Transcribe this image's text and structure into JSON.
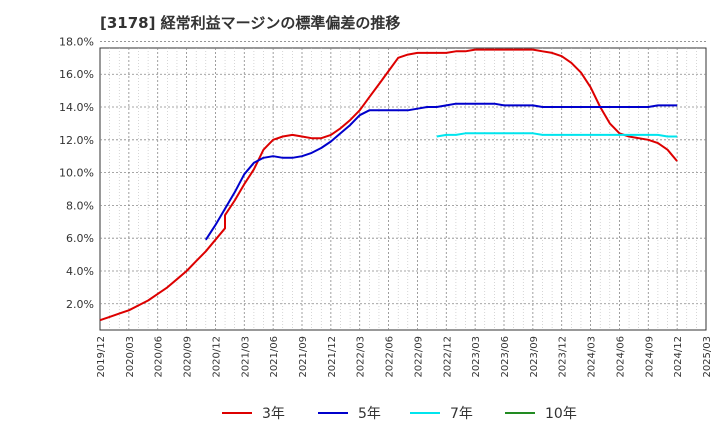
{
  "title": "[3178]  経常利益マージンの標準偏差の推移",
  "chart_data": {
    "type": "line",
    "title": "[3178]  経常利益マージンの標準偏差の推移",
    "xlabel": "",
    "ylabel": "",
    "ylim": [
      0.4,
      17.6
    ],
    "y_ticks": [
      "2.0%",
      "4.0%",
      "6.0%",
      "8.0%",
      "10.0%",
      "12.0%",
      "14.0%",
      "16.0%",
      "18.0%"
    ],
    "y_tick_values": [
      2,
      4,
      6,
      8,
      10,
      12,
      14,
      16,
      18
    ],
    "x_ticks": [
      "2019/12",
      "2020/03",
      "2020/06",
      "2020/09",
      "2020/12",
      "2021/03",
      "2021/06",
      "2021/09",
      "2021/12",
      "2022/03",
      "2022/06",
      "2022/09",
      "2022/12",
      "2023/03",
      "2023/06",
      "2023/09",
      "2023/12",
      "2024/03",
      "2024/06",
      "2024/09",
      "2024/12",
      "2025/03"
    ],
    "grid": true,
    "legend_position": "bottom",
    "series": [
      {
        "name": "3年",
        "color": "#dd0000",
        "points": [
          [
            "2019/12",
            1.0
          ],
          [
            "2020/01",
            1.2
          ],
          [
            "2020/02",
            1.4
          ],
          [
            "2020/03",
            1.6
          ],
          [
            "2020/04",
            1.9
          ],
          [
            "2020/05",
            2.2
          ],
          [
            "2020/06",
            2.6
          ],
          [
            "2020/07",
            3.0
          ],
          [
            "2020/08",
            3.5
          ],
          [
            "2020/09",
            4.0
          ],
          [
            "2020/10",
            4.6
          ],
          [
            "2020/11",
            5.2
          ],
          [
            "2020/12",
            5.9
          ],
          [
            "2020/13",
            6.6
          ],
          [
            "2021/01",
            7.4
          ],
          [
            "2021/02",
            8.3
          ],
          [
            "2021/03",
            9.3
          ],
          [
            "2021/04",
            10.2
          ],
          [
            "2021/05",
            11.4
          ],
          [
            "2021/06",
            12.0
          ],
          [
            "2021/07",
            12.2
          ],
          [
            "2021/08",
            12.3
          ],
          [
            "2021/09",
            12.2
          ],
          [
            "2021/10",
            12.1
          ],
          [
            "2021/11",
            12.1
          ],
          [
            "2021/12",
            12.3
          ],
          [
            "2022/01",
            12.7
          ],
          [
            "2022/02",
            13.2
          ],
          [
            "2022/03",
            13.8
          ],
          [
            "2022/04",
            14.6
          ],
          [
            "2022/05",
            15.4
          ],
          [
            "2022/06",
            16.2
          ],
          [
            "2022/07",
            17.0
          ],
          [
            "2022/08",
            17.2
          ],
          [
            "2022/09",
            17.3
          ],
          [
            "2022/10",
            17.3
          ],
          [
            "2022/11",
            17.3
          ],
          [
            "2022/12",
            17.3
          ],
          [
            "2023/01",
            17.4
          ],
          [
            "2023/02",
            17.4
          ],
          [
            "2023/03",
            17.5
          ],
          [
            "2023/04",
            17.5
          ],
          [
            "2023/05",
            17.5
          ],
          [
            "2023/06",
            17.5
          ],
          [
            "2023/07",
            17.5
          ],
          [
            "2023/08",
            17.5
          ],
          [
            "2023/09",
            17.5
          ],
          [
            "2023/10",
            17.4
          ],
          [
            "2023/11",
            17.3
          ],
          [
            "2023/12",
            17.1
          ],
          [
            "2024/01",
            16.7
          ],
          [
            "2024/02",
            16.1
          ],
          [
            "2024/03",
            15.2
          ],
          [
            "2024/04",
            14.0
          ],
          [
            "2024/05",
            13.0
          ],
          [
            "2024/06",
            12.4
          ],
          [
            "2024/07",
            12.2
          ],
          [
            "2024/08",
            12.1
          ],
          [
            "2024/09",
            12.0
          ],
          [
            "2024/10",
            11.8
          ],
          [
            "2024/11",
            11.4
          ],
          [
            "2024/12",
            10.7
          ]
        ]
      },
      {
        "name": "5年",
        "color": "#0000cc",
        "points": [
          [
            "2020/11",
            5.9
          ],
          [
            "2020/12",
            6.8
          ],
          [
            "2021/01",
            7.8
          ],
          [
            "2021/02",
            8.8
          ],
          [
            "2021/03",
            9.9
          ],
          [
            "2021/04",
            10.6
          ],
          [
            "2021/05",
            10.9
          ],
          [
            "2021/06",
            11.0
          ],
          [
            "2021/07",
            10.9
          ],
          [
            "2021/08",
            10.9
          ],
          [
            "2021/09",
            11.0
          ],
          [
            "2021/10",
            11.2
          ],
          [
            "2021/11",
            11.5
          ],
          [
            "2021/12",
            11.9
          ],
          [
            "2022/01",
            12.4
          ],
          [
            "2022/02",
            12.9
          ],
          [
            "2022/03",
            13.5
          ],
          [
            "2022/04",
            13.8
          ],
          [
            "2022/05",
            13.8
          ],
          [
            "2022/06",
            13.8
          ],
          [
            "2022/07",
            13.8
          ],
          [
            "2022/08",
            13.8
          ],
          [
            "2022/09",
            13.9
          ],
          [
            "2022/10",
            14.0
          ],
          [
            "2022/11",
            14.0
          ],
          [
            "2022/12",
            14.1
          ],
          [
            "2023/01",
            14.2
          ],
          [
            "2023/02",
            14.2
          ],
          [
            "2023/03",
            14.2
          ],
          [
            "2023/04",
            14.2
          ],
          [
            "2023/05",
            14.2
          ],
          [
            "2023/06",
            14.1
          ],
          [
            "2023/07",
            14.1
          ],
          [
            "2023/08",
            14.1
          ],
          [
            "2023/09",
            14.1
          ],
          [
            "2023/10",
            14.0
          ],
          [
            "2023/11",
            14.0
          ],
          [
            "2023/12",
            14.0
          ],
          [
            "2024/01",
            14.0
          ],
          [
            "2024/02",
            14.0
          ],
          [
            "2024/03",
            14.0
          ],
          [
            "2024/04",
            14.0
          ],
          [
            "2024/05",
            14.0
          ],
          [
            "2024/06",
            14.0
          ],
          [
            "2024/07",
            14.0
          ],
          [
            "2024/08",
            14.0
          ],
          [
            "2024/09",
            14.0
          ],
          [
            "2024/10",
            14.1
          ],
          [
            "2024/11",
            14.1
          ],
          [
            "2024/12",
            14.1
          ]
        ]
      },
      {
        "name": "7年",
        "color": "#00e5ee",
        "points": [
          [
            "2022/11",
            12.2
          ],
          [
            "2022/12",
            12.3
          ],
          [
            "2023/01",
            12.3
          ],
          [
            "2023/02",
            12.4
          ],
          [
            "2023/03",
            12.4
          ],
          [
            "2023/04",
            12.4
          ],
          [
            "2023/05",
            12.4
          ],
          [
            "2023/06",
            12.4
          ],
          [
            "2023/07",
            12.4
          ],
          [
            "2023/08",
            12.4
          ],
          [
            "2023/09",
            12.4
          ],
          [
            "2023/10",
            12.3
          ],
          [
            "2023/11",
            12.3
          ],
          [
            "2023/12",
            12.3
          ],
          [
            "2024/01",
            12.3
          ],
          [
            "2024/02",
            12.3
          ],
          [
            "2024/03",
            12.3
          ],
          [
            "2024/04",
            12.3
          ],
          [
            "2024/05",
            12.3
          ],
          [
            "2024/06",
            12.3
          ],
          [
            "2024/07",
            12.3
          ],
          [
            "2024/08",
            12.3
          ],
          [
            "2024/09",
            12.3
          ],
          [
            "2024/10",
            12.3
          ],
          [
            "2024/11",
            12.2
          ],
          [
            "2024/12",
            12.2
          ]
        ]
      },
      {
        "name": "10年",
        "color": "#228b22",
        "points": []
      }
    ]
  }
}
